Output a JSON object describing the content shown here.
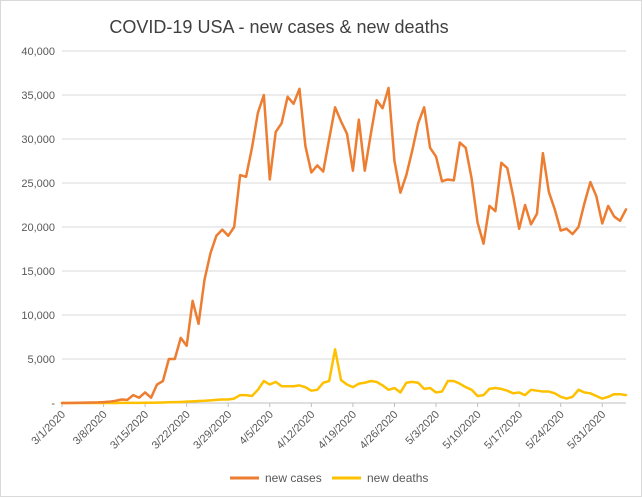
{
  "chart_data": {
    "type": "line",
    "title": "COVID-19 USA - new cases & new deaths",
    "xlabel": "",
    "ylabel": "",
    "ylim": [
      0,
      40000
    ],
    "y_ticks": [
      0,
      5000,
      10000,
      15000,
      20000,
      25000,
      30000,
      35000,
      40000
    ],
    "y_tick_labels": [
      "-",
      "5,000",
      "10,000",
      "15,000",
      "20,000",
      "25,000",
      "30,000",
      "35,000",
      "40,000"
    ],
    "x_start_label": "3/1/2020",
    "x_tick_labels": [
      "3/1/2020",
      "3/8/2020",
      "3/15/2020",
      "3/22/2020",
      "3/29/2020",
      "4/5/2020",
      "4/12/2020",
      "4/19/2020",
      "4/26/2020",
      "5/3/2020",
      "5/10/2020",
      "5/17/2020",
      "5/24/2020",
      "5/31/2020"
    ],
    "grid": "horizontal",
    "legend_position": "bottom",
    "colors": {
      "cases": "#ed7d31",
      "deaths": "#ffc000",
      "grid": "#d9d9d9",
      "axis": "#bfbfbf"
    },
    "series": [
      {
        "name": "new cases",
        "color": "#ed7d31",
        "values": [
          0,
          5,
          20,
          30,
          45,
          60,
          70,
          100,
          150,
          250,
          400,
          350,
          900,
          600,
          1200,
          600,
          2100,
          2500,
          5000,
          5000,
          7400,
          6500,
          11600,
          9000,
          14000,
          17000,
          19000,
          19700,
          19000,
          20000,
          25900,
          25700,
          29000,
          33000,
          35000,
          25400,
          30800,
          31800,
          34800,
          34000,
          35700,
          29200,
          26200,
          27000,
          26300,
          30000,
          33600,
          32000,
          30600,
          26400,
          32200,
          26400,
          30500,
          34400,
          33500,
          35800,
          27500,
          23900,
          25900,
          28700,
          31800,
          33600,
          29000,
          28000,
          25200,
          25400,
          25300,
          29600,
          29000,
          25500,
          20500,
          18100,
          22400,
          21800,
          27300,
          26700,
          23500,
          19800,
          22500,
          20300,
          21500,
          28400,
          24000,
          22000,
          19600,
          19800,
          19200,
          20000,
          22700,
          25100,
          23500,
          20400,
          22400,
          21200,
          20700,
          22000
        ]
      },
      {
        "name": "new deaths",
        "color": "#ffc000",
        "values": [
          0,
          0,
          0,
          0,
          0,
          0,
          0,
          0,
          0,
          5,
          10,
          10,
          20,
          20,
          30,
          30,
          40,
          60,
          80,
          100,
          120,
          150,
          180,
          220,
          250,
          300,
          350,
          400,
          400,
          500,
          900,
          900,
          800,
          1500,
          2500,
          2100,
          2400,
          1900,
          1900,
          1900,
          2000,
          1800,
          1400,
          1500,
          2300,
          2500,
          6100,
          2600,
          2100,
          1800,
          2200,
          2300,
          2500,
          2400,
          2000,
          1500,
          1700,
          1200,
          2300,
          2400,
          2300,
          1600,
          1700,
          1200,
          1300,
          2500,
          2500,
          2200,
          1800,
          1500,
          800,
          900,
          1600,
          1700,
          1600,
          1400,
          1100,
          1200,
          900,
          1500,
          1400,
          1300,
          1300,
          1100,
          700,
          500,
          700,
          1500,
          1200,
          1100,
          800,
          500,
          700,
          1000,
          1000,
          900
        ]
      }
    ]
  }
}
